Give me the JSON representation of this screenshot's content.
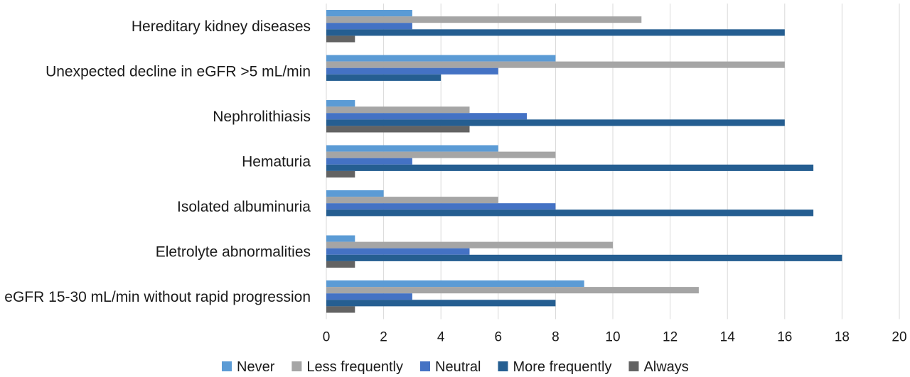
{
  "chart_data": {
    "type": "bar",
    "orientation": "horizontal",
    "title": "",
    "xlabel": "",
    "ylabel": "",
    "categories": [
      "Hereditary kidney diseases",
      "Unexpected decline in eGFR >5 mL/min",
      "Nephrolithiasis",
      "Hematuria",
      "Isolated albuminuria",
      "Eletrolyte abnormalities",
      "eGFR 15-30 mL/min without rapid progression"
    ],
    "series": [
      {
        "name": "Never",
        "color": "#5b9bd5",
        "values": [
          3,
          8,
          1,
          6,
          2,
          1,
          9
        ]
      },
      {
        "name": "Less frequently",
        "color": "#a5a5a5",
        "values": [
          11,
          16,
          5,
          8,
          6,
          10,
          13
        ]
      },
      {
        "name": "Neutral",
        "color": "#4472c4",
        "values": [
          3,
          6,
          7,
          3,
          8,
          5,
          3
        ]
      },
      {
        "name": "More frequently",
        "color": "#255e91",
        "values": [
          16,
          4,
          16,
          17,
          17,
          18,
          8
        ]
      },
      {
        "name": "Always",
        "color": "#636363",
        "values": [
          1,
          0,
          5,
          1,
          0,
          1,
          1
        ]
      }
    ],
    "xlim": [
      0,
      20
    ],
    "xticks": [
      "0",
      "2",
      "4",
      "6",
      "8",
      "10",
      "12",
      "14",
      "16",
      "18",
      "20"
    ],
    "grid": true,
    "legend_position": "bottom"
  }
}
